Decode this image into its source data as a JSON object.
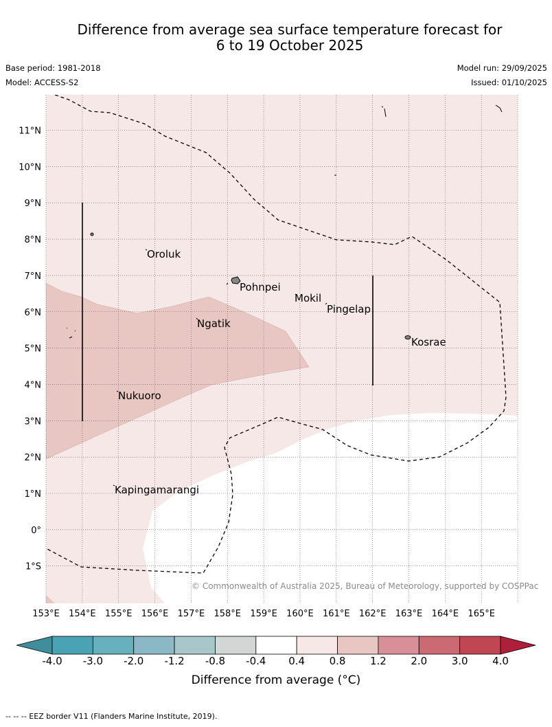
{
  "title": {
    "line1": "Difference from average sea surface temperature forecast for",
    "line2": "6 to 19 October 2025"
  },
  "meta": {
    "base_period": "Base period: 1981-2018",
    "model": "Model: ACCESS-S2",
    "model_run": "Model run: 29/09/2025",
    "issued": "Issued: 01/10/2025"
  },
  "axes": {
    "lon_labels": [
      "153°E",
      "154°E",
      "155°E",
      "156°E",
      "157°E",
      "158°E",
      "159°E",
      "160°E",
      "161°E",
      "162°E",
      "163°E",
      "164°E",
      "165°E"
    ],
    "lat_labels": [
      "11°N",
      "10°N",
      "9°N",
      "8°N",
      "7°N",
      "6°N",
      "5°N",
      "4°N",
      "3°N",
      "2°N",
      "1°N",
      "0°",
      "1°S"
    ]
  },
  "places": [
    "Oroluk",
    "Pohnpei",
    "Mokil",
    "Pingelap",
    "Ngatik",
    "Kosrae",
    "Nukuoro",
    "Kapingamarangi"
  ],
  "copyright": "© Commonwealth of Australia 2025, Bureau of Meteorology, supported by COSPPac",
  "colorbar": {
    "labels": [
      "-4.0",
      "-3.0",
      "-2.0",
      "-1.2",
      "-0.8",
      "-0.4",
      "0.4",
      "0.8",
      "1.2",
      "2.0",
      "3.0",
      "4.0"
    ],
    "colors": [
      "#3e8e9b",
      "#4aa3b4",
      "#67b0be",
      "#8ab8c4",
      "#a8c7cb",
      "#d2d7d6",
      "#ffffff",
      "#f5e8e7",
      "#e8c6c1",
      "#d98f97",
      "#cc6a74",
      "#c04654",
      "#ad1f3b"
    ],
    "title": "Difference from average (°C)"
  },
  "footnote": "--  --  -- EEZ border V11 (Flanders Marine Institute, 2019)."
}
